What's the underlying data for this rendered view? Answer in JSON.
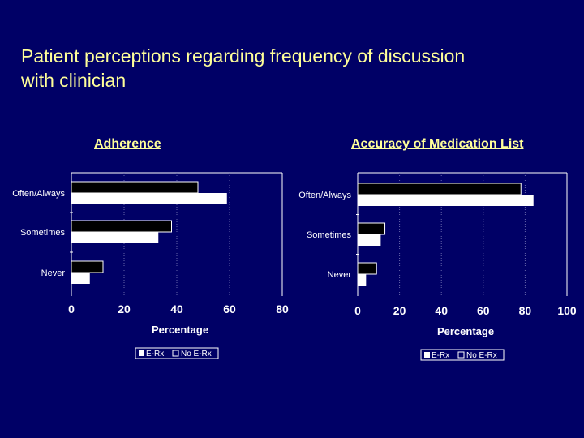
{
  "slide": {
    "title_line1": "Patient perceptions regarding frequency of discussion",
    "title_line2": "with clinician"
  },
  "colors": {
    "background": "#000066",
    "title": "#ffff99",
    "chart_title": "#ffff99",
    "axis_text": "#ffffff",
    "erx_bar": "#000000",
    "no_erx_bar": "#ffffff"
  },
  "chart_data": [
    {
      "type": "bar",
      "orientation": "horizontal",
      "title": "Adherence",
      "categories": [
        "Often/Always",
        "Sometimes",
        "Never"
      ],
      "series": [
        {
          "name": "E-Rx",
          "values": [
            48,
            38,
            12
          ]
        },
        {
          "name": "No E-Rx",
          "values": [
            59,
            33,
            7
          ]
        }
      ],
      "xlabel": "Percentage",
      "xlim": [
        0,
        80
      ],
      "xticks": [
        "0",
        "20",
        "40",
        "60",
        "80"
      ],
      "legend": "bottom"
    },
    {
      "type": "bar",
      "orientation": "horizontal",
      "title": "Accuracy of Medication List",
      "categories": [
        "Often/Always",
        "Sometimes",
        "Never"
      ],
      "series": [
        {
          "name": "E-Rx",
          "values": [
            78,
            13,
            9
          ]
        },
        {
          "name": "No E-Rx",
          "values": [
            84,
            11,
            4
          ]
        }
      ],
      "xlabel": "Percentage",
      "xlim": [
        0,
        100
      ],
      "xticks": [
        "0",
        "20",
        "40",
        "60",
        "80",
        "100"
      ],
      "legend": "bottom"
    }
  ]
}
